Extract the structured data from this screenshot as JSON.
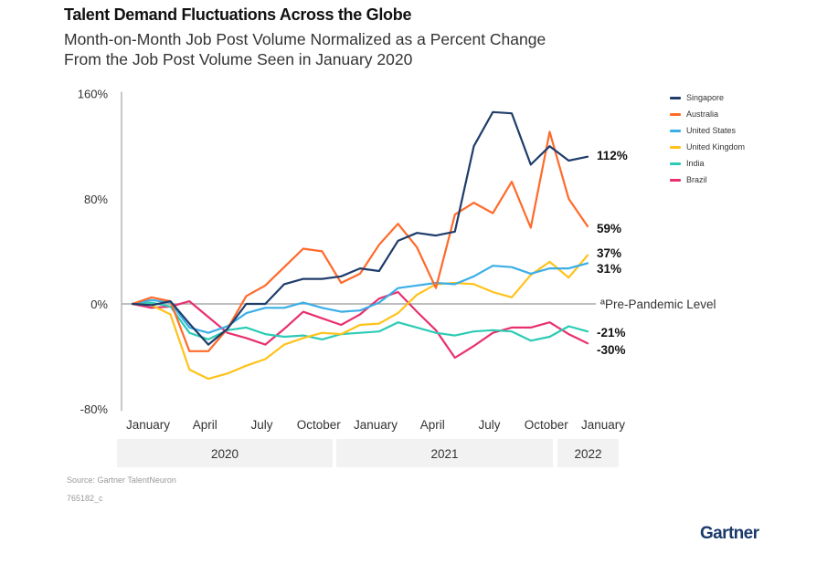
{
  "header": {
    "title": "Talent Demand Fluctuations Across the Globe",
    "subtitle_line1": "Month-on-Month Job Post Volume Normalized as a Percent Change",
    "subtitle_line2": "From the Job Post Volume Seen in January 2020"
  },
  "footer": {
    "source": "Source: Gartner TalentNeuron",
    "code": "765182_c",
    "brand": "Gartner"
  },
  "chart_data": {
    "type": "line",
    "title": "Talent Demand Fluctuations Across the Globe",
    "subtitle": "Month-on-Month Job Post Volume Normalized as a Percent Change From the Job Post Volume Seen in January 2020",
    "xlabel": "",
    "ylabel": "",
    "ylim": [
      -80,
      160
    ],
    "yticks": [
      -80,
      0,
      80,
      160
    ],
    "ytick_labels": [
      "-80%",
      "0%",
      "80%",
      "160%"
    ],
    "x": [
      "Jan 2020",
      "Feb 2020",
      "Mar 2020",
      "Apr 2020",
      "May 2020",
      "Jun 2020",
      "Jul 2020",
      "Aug 2020",
      "Sep 2020",
      "Oct 2020",
      "Nov 2020",
      "Dec 2020",
      "Jan 2021",
      "Feb 2021",
      "Mar 2021",
      "Apr 2021",
      "May 2021",
      "Jun 2021",
      "Jul 2021",
      "Aug 2021",
      "Sep 2021",
      "Oct 2021",
      "Nov 2021",
      "Dec 2021",
      "Jan 2022"
    ],
    "xtick_labels": [
      {
        "index": 0,
        "label": "January"
      },
      {
        "index": 3,
        "label": "April"
      },
      {
        "index": 6,
        "label": "July"
      },
      {
        "index": 9,
        "label": "October"
      },
      {
        "index": 12,
        "label": "January"
      },
      {
        "index": 15,
        "label": "April"
      },
      {
        "index": 18,
        "label": "July"
      },
      {
        "index": 21,
        "label": "October"
      },
      {
        "index": 24,
        "label": "January"
      }
    ],
    "year_bands": [
      {
        "label": "2020",
        "start": 0,
        "end": 11
      },
      {
        "label": "2021",
        "start": 12,
        "end": 23
      },
      {
        "label": "2022",
        "start": 24,
        "end": 24
      }
    ],
    "reference_line": {
      "value": 0,
      "label": "ªPre-Pandemic Level"
    },
    "legend_position": "top-right",
    "grid": false,
    "series": [
      {
        "name": "Singapore",
        "color": "#1f3c6b",
        "end_label": "112%",
        "values": [
          0,
          -1,
          2,
          -15,
          -31,
          -19,
          0,
          0,
          15,
          19,
          19,
          21,
          27,
          25,
          48,
          54,
          52,
          55,
          120,
          146,
          145,
          106,
          120,
          109,
          112
        ]
      },
      {
        "name": "Australia",
        "color": "#ff6a2a",
        "end_label": "59%",
        "values": [
          0,
          5,
          2,
          -36,
          -36,
          -19,
          6,
          14,
          28,
          42,
          40,
          16,
          23,
          45,
          61,
          43,
          12,
          68,
          77,
          69,
          93,
          58,
          131,
          80,
          59
        ]
      },
      {
        "name": "United States",
        "color": "#3aaee6",
        "end_label": "31%",
        "values": [
          0,
          3,
          1,
          -18,
          -22,
          -17,
          -7,
          -3,
          -3,
          1,
          -3,
          -6,
          -5,
          1,
          12,
          14,
          16,
          15,
          21,
          29,
          28,
          23,
          27,
          27,
          31
        ]
      },
      {
        "name": "United Kingdom",
        "color": "#ffc21a",
        "end_label": "37%",
        "values": [
          0,
          -1,
          -8,
          -50,
          -57,
          -53,
          -47,
          -42,
          -31,
          -26,
          -22,
          -23,
          -16,
          -15,
          -7,
          7,
          15,
          16,
          15,
          9,
          5,
          22,
          32,
          20,
          37
        ]
      },
      {
        "name": "India",
        "color": "#2ccbb5",
        "end_label": "-21%",
        "values": [
          0,
          1,
          -2,
          -22,
          -27,
          -20,
          -18,
          -23,
          -25,
          -24,
          -27,
          -23,
          -22,
          -21,
          -14,
          -18,
          -22,
          -24,
          -21,
          -20,
          -21,
          -28,
          -25,
          -17,
          -21
        ]
      },
      {
        "name": "Brazil",
        "color": "#e8306e",
        "end_label": "-30%",
        "values": [
          0,
          -3,
          -2,
          2,
          -10,
          -22,
          -26,
          -31,
          -19,
          -6,
          -11,
          -16,
          -8,
          4,
          9,
          -6,
          -20,
          -41,
          -32,
          -22,
          -18,
          -18,
          -14,
          -23,
          -30
        ]
      }
    ]
  }
}
